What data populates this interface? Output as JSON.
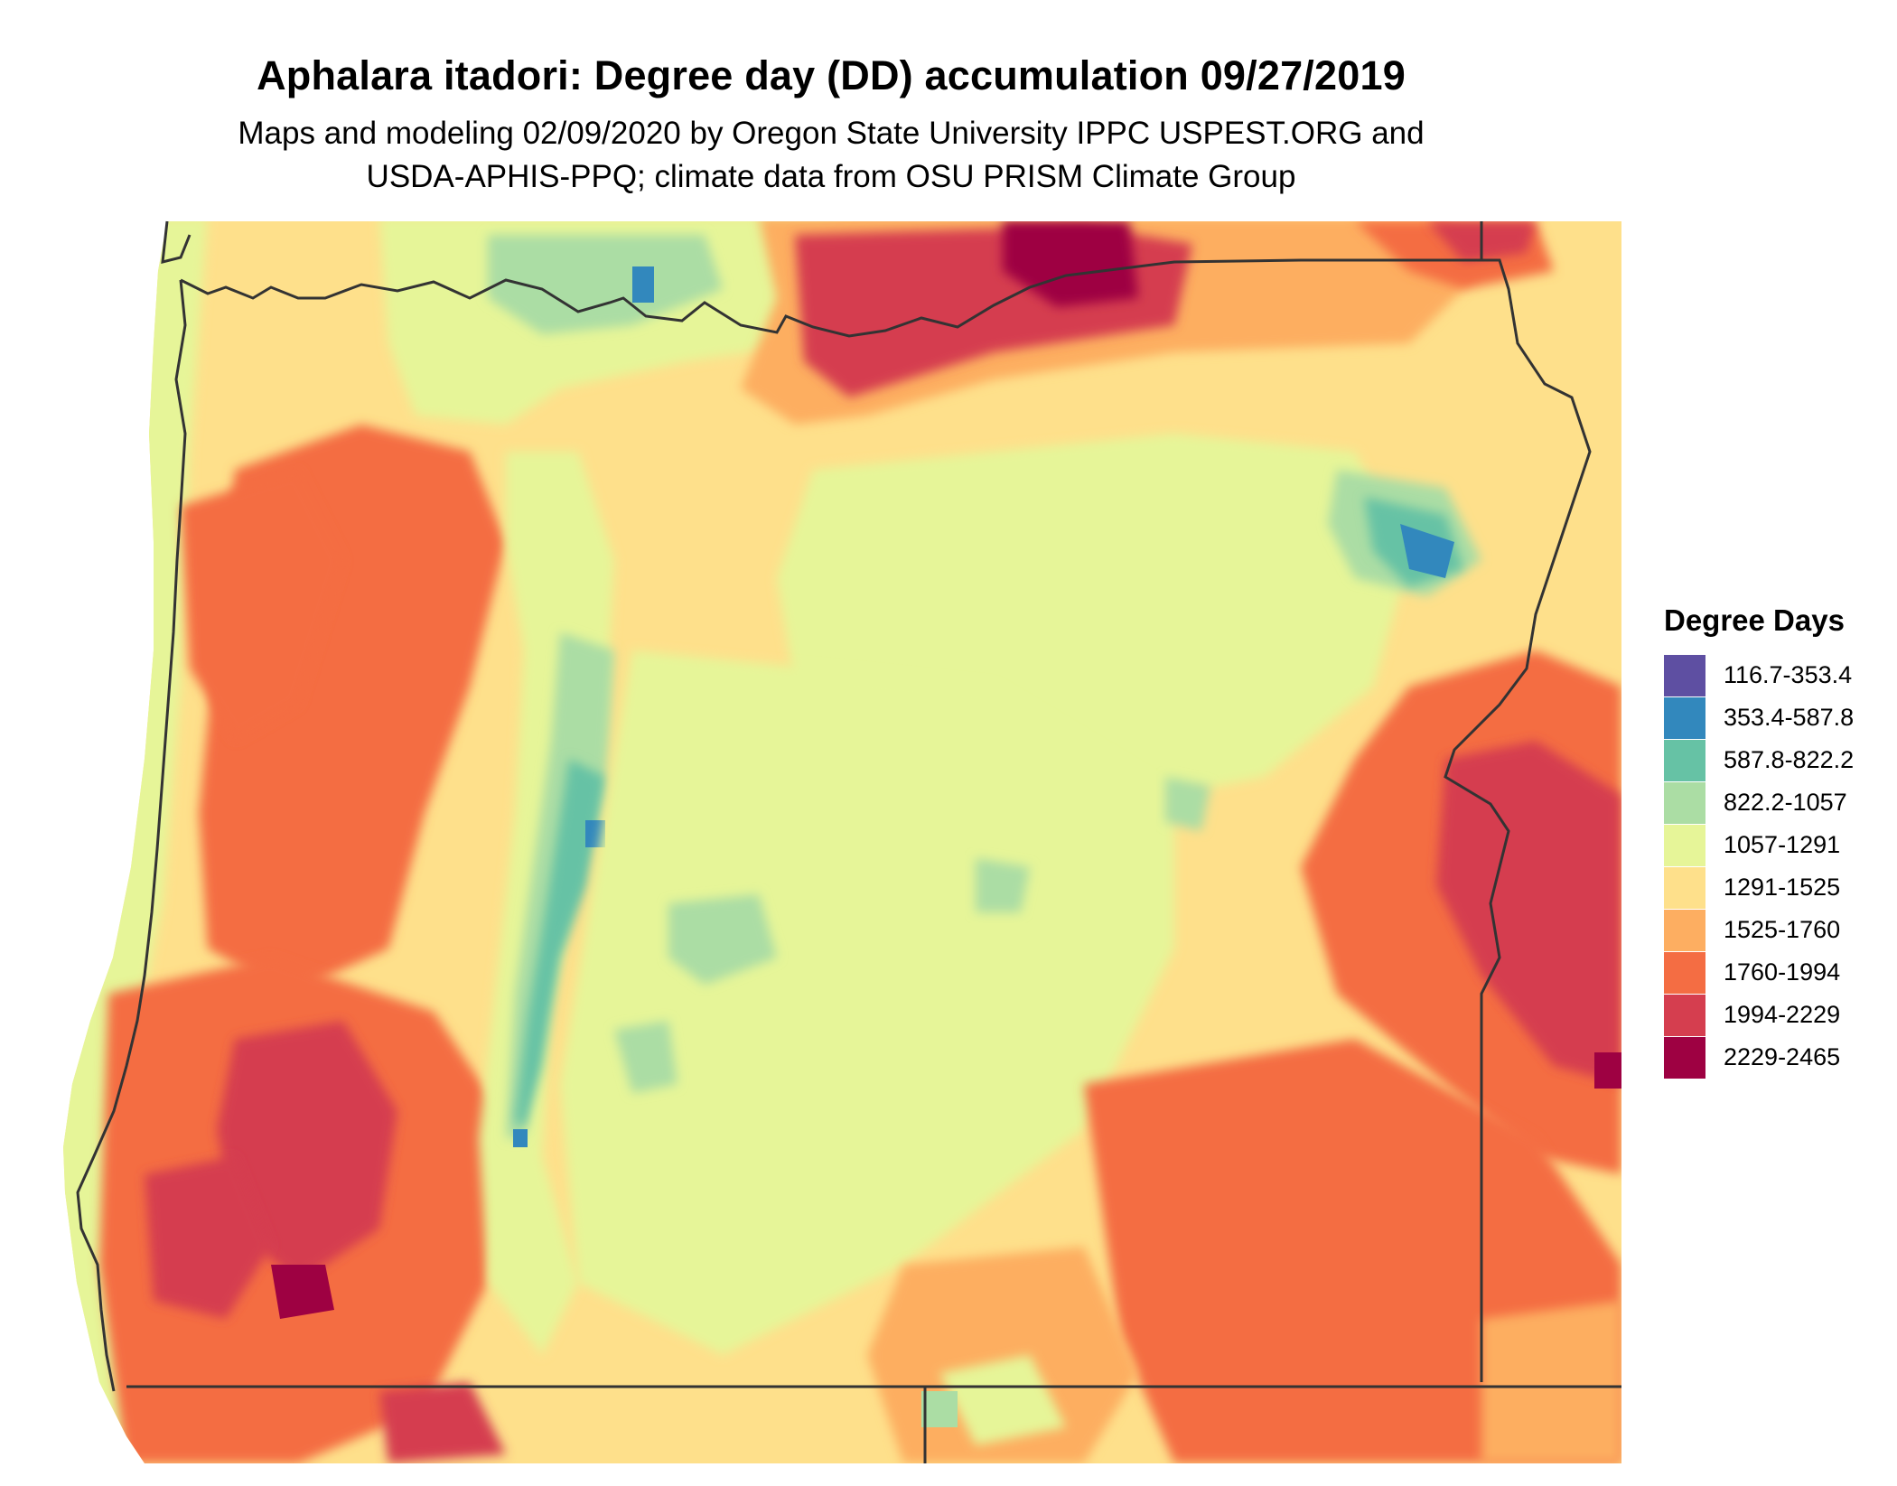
{
  "title": "Aphalara itadori: Degree day (DD) accumulation 09/27/2019",
  "subtitle_line1": "Maps and modeling 02/09/2020 by Oregon State University IPPC USPEST.ORG and",
  "subtitle_line2": "USDA-APHIS-PPQ; climate data from OSU PRISM Climate Group",
  "legend": {
    "title": "Degree Days",
    "items": [
      {
        "label": "116.7-353.4",
        "color": "#5e4fa2"
      },
      {
        "label": "353.4-587.8",
        "color": "#3288bd"
      },
      {
        "label": "587.8-822.2",
        "color": "#66c2a5"
      },
      {
        "label": "822.2-1057",
        "color": "#abdda4"
      },
      {
        "label": "1057-1291",
        "color": "#e6f598"
      },
      {
        "label": "1291-1525",
        "color": "#fee08b"
      },
      {
        "label": "1525-1760",
        "color": "#fdae61"
      },
      {
        "label": "1760-1994",
        "color": "#f46d43"
      },
      {
        "label": "1994-2229",
        "color": "#d53e4f"
      },
      {
        "label": "2229-2465",
        "color": "#9e0142"
      }
    ]
  },
  "map": {
    "region": "Oregon",
    "boundary_color": "#333333"
  }
}
